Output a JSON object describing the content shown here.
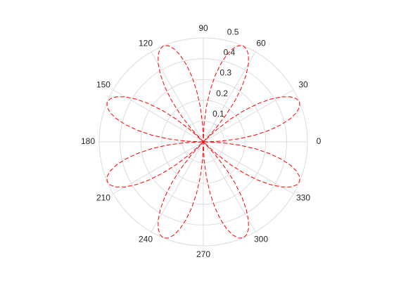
{
  "chart_data": {
    "type": "polar",
    "color": "#ff0000",
    "line_style": "dashed",
    "rlim": [
      0,
      0.5
    ],
    "rticks": [
      0.1,
      0.2,
      0.3,
      0.4,
      0.5
    ],
    "thetaticks": [
      0,
      30,
      60,
      90,
      120,
      150,
      180,
      210,
      240,
      270,
      300,
      330
    ],
    "grid": true,
    "theta": [
      0,
      2.5,
      5,
      7.5,
      10,
      12.5,
      15,
      17.5,
      20,
      22.5,
      25,
      27.5,
      30,
      32.5,
      35,
      37.5,
      40,
      42.5,
      45,
      47.5,
      50,
      52.5,
      55,
      57.5,
      60,
      62.5,
      65,
      67.5,
      70,
      72.5,
      75,
      77.5,
      80,
      82.5,
      85,
      87.5,
      90,
      92.5,
      95,
      97.5,
      100,
      102.5,
      105,
      107.5,
      110,
      112.5,
      115,
      117.5,
      120,
      122.5,
      125,
      127.5,
      130,
      132.5,
      135,
      137.5,
      140,
      142.5,
      145,
      147.5,
      150,
      152.5,
      155,
      157.5,
      160,
      162.5,
      165,
      167.5,
      170,
      172.5,
      175,
      177.5,
      180,
      182.5,
      185,
      187.5,
      190,
      192.5,
      195,
      197.5,
      200,
      202.5,
      205,
      207.5,
      210,
      212.5,
      215,
      217.5,
      220,
      222.5,
      225,
      227.5,
      230,
      232.5,
      235,
      237.5,
      240,
      242.5,
      245,
      247.5,
      250,
      252.5,
      255,
      257.5,
      260,
      262.5,
      265,
      267.5,
      270,
      272.5,
      275,
      277.5,
      280,
      282.5,
      285,
      287.5,
      290,
      292.5,
      295,
      297.5,
      300,
      302.5,
      305,
      307.5,
      310,
      312.5,
      315,
      317.5,
      320,
      322.5,
      325,
      327.5,
      330,
      332.5,
      335,
      337.5,
      340,
      342.5,
      345,
      347.5,
      350,
      352.5,
      355,
      357.5,
      360
    ],
    "r": [
      0,
      0.0868,
      0.171,
      0.25,
      0.3214,
      0.383,
      0.433,
      0.4698,
      0.4924,
      0.5,
      0.4924,
      0.4698,
      0.433,
      0.383,
      0.3214,
      0.25,
      0.171,
      0.0868,
      0,
      -0.0868,
      -0.171,
      -0.25,
      -0.3214,
      -0.383,
      -0.433,
      -0.4698,
      -0.4924,
      -0.5,
      -0.4924,
      -0.4698,
      -0.433,
      -0.383,
      -0.3214,
      -0.25,
      -0.171,
      -0.0868,
      0,
      0.0868,
      0.171,
      0.25,
      0.3214,
      0.383,
      0.433,
      0.4698,
      0.4924,
      0.5,
      0.4924,
      0.4698,
      0.433,
      0.383,
      0.3214,
      0.25,
      0.171,
      0.0868,
      0,
      -0.0868,
      -0.171,
      -0.25,
      -0.3214,
      -0.383,
      -0.433,
      -0.4698,
      -0.4924,
      -0.5,
      -0.4924,
      -0.4698,
      -0.433,
      -0.383,
      -0.3214,
      -0.25,
      -0.171,
      -0.0868,
      0,
      0.0868,
      0.171,
      0.25,
      0.3214,
      0.383,
      0.433,
      0.4698,
      0.4924,
      0.5,
      0.4924,
      0.4698,
      0.433,
      0.383,
      0.3214,
      0.25,
      0.171,
      0.0868,
      0,
      -0.0868,
      -0.171,
      -0.25,
      -0.3214,
      -0.383,
      -0.433,
      -0.4698,
      -0.4924,
      -0.5,
      -0.4924,
      -0.4698,
      -0.433,
      -0.383,
      -0.3214,
      -0.25,
      -0.171,
      -0.0868,
      0,
      0.0868,
      0.171,
      0.25,
      0.3214,
      0.383,
      0.433,
      0.4698,
      0.4924,
      0.5,
      0.4924,
      0.4698,
      0.433,
      0.383,
      0.3214,
      0.25,
      0.171,
      0.0868,
      0,
      -0.0868,
      -0.171,
      -0.25,
      -0.3214,
      -0.383,
      -0.433,
      -0.4698,
      -0.4924,
      -0.5,
      -0.4924,
      -0.4698,
      -0.433,
      -0.383,
      -0.3214,
      -0.25,
      -0.171,
      -0.0868,
      0
    ]
  }
}
